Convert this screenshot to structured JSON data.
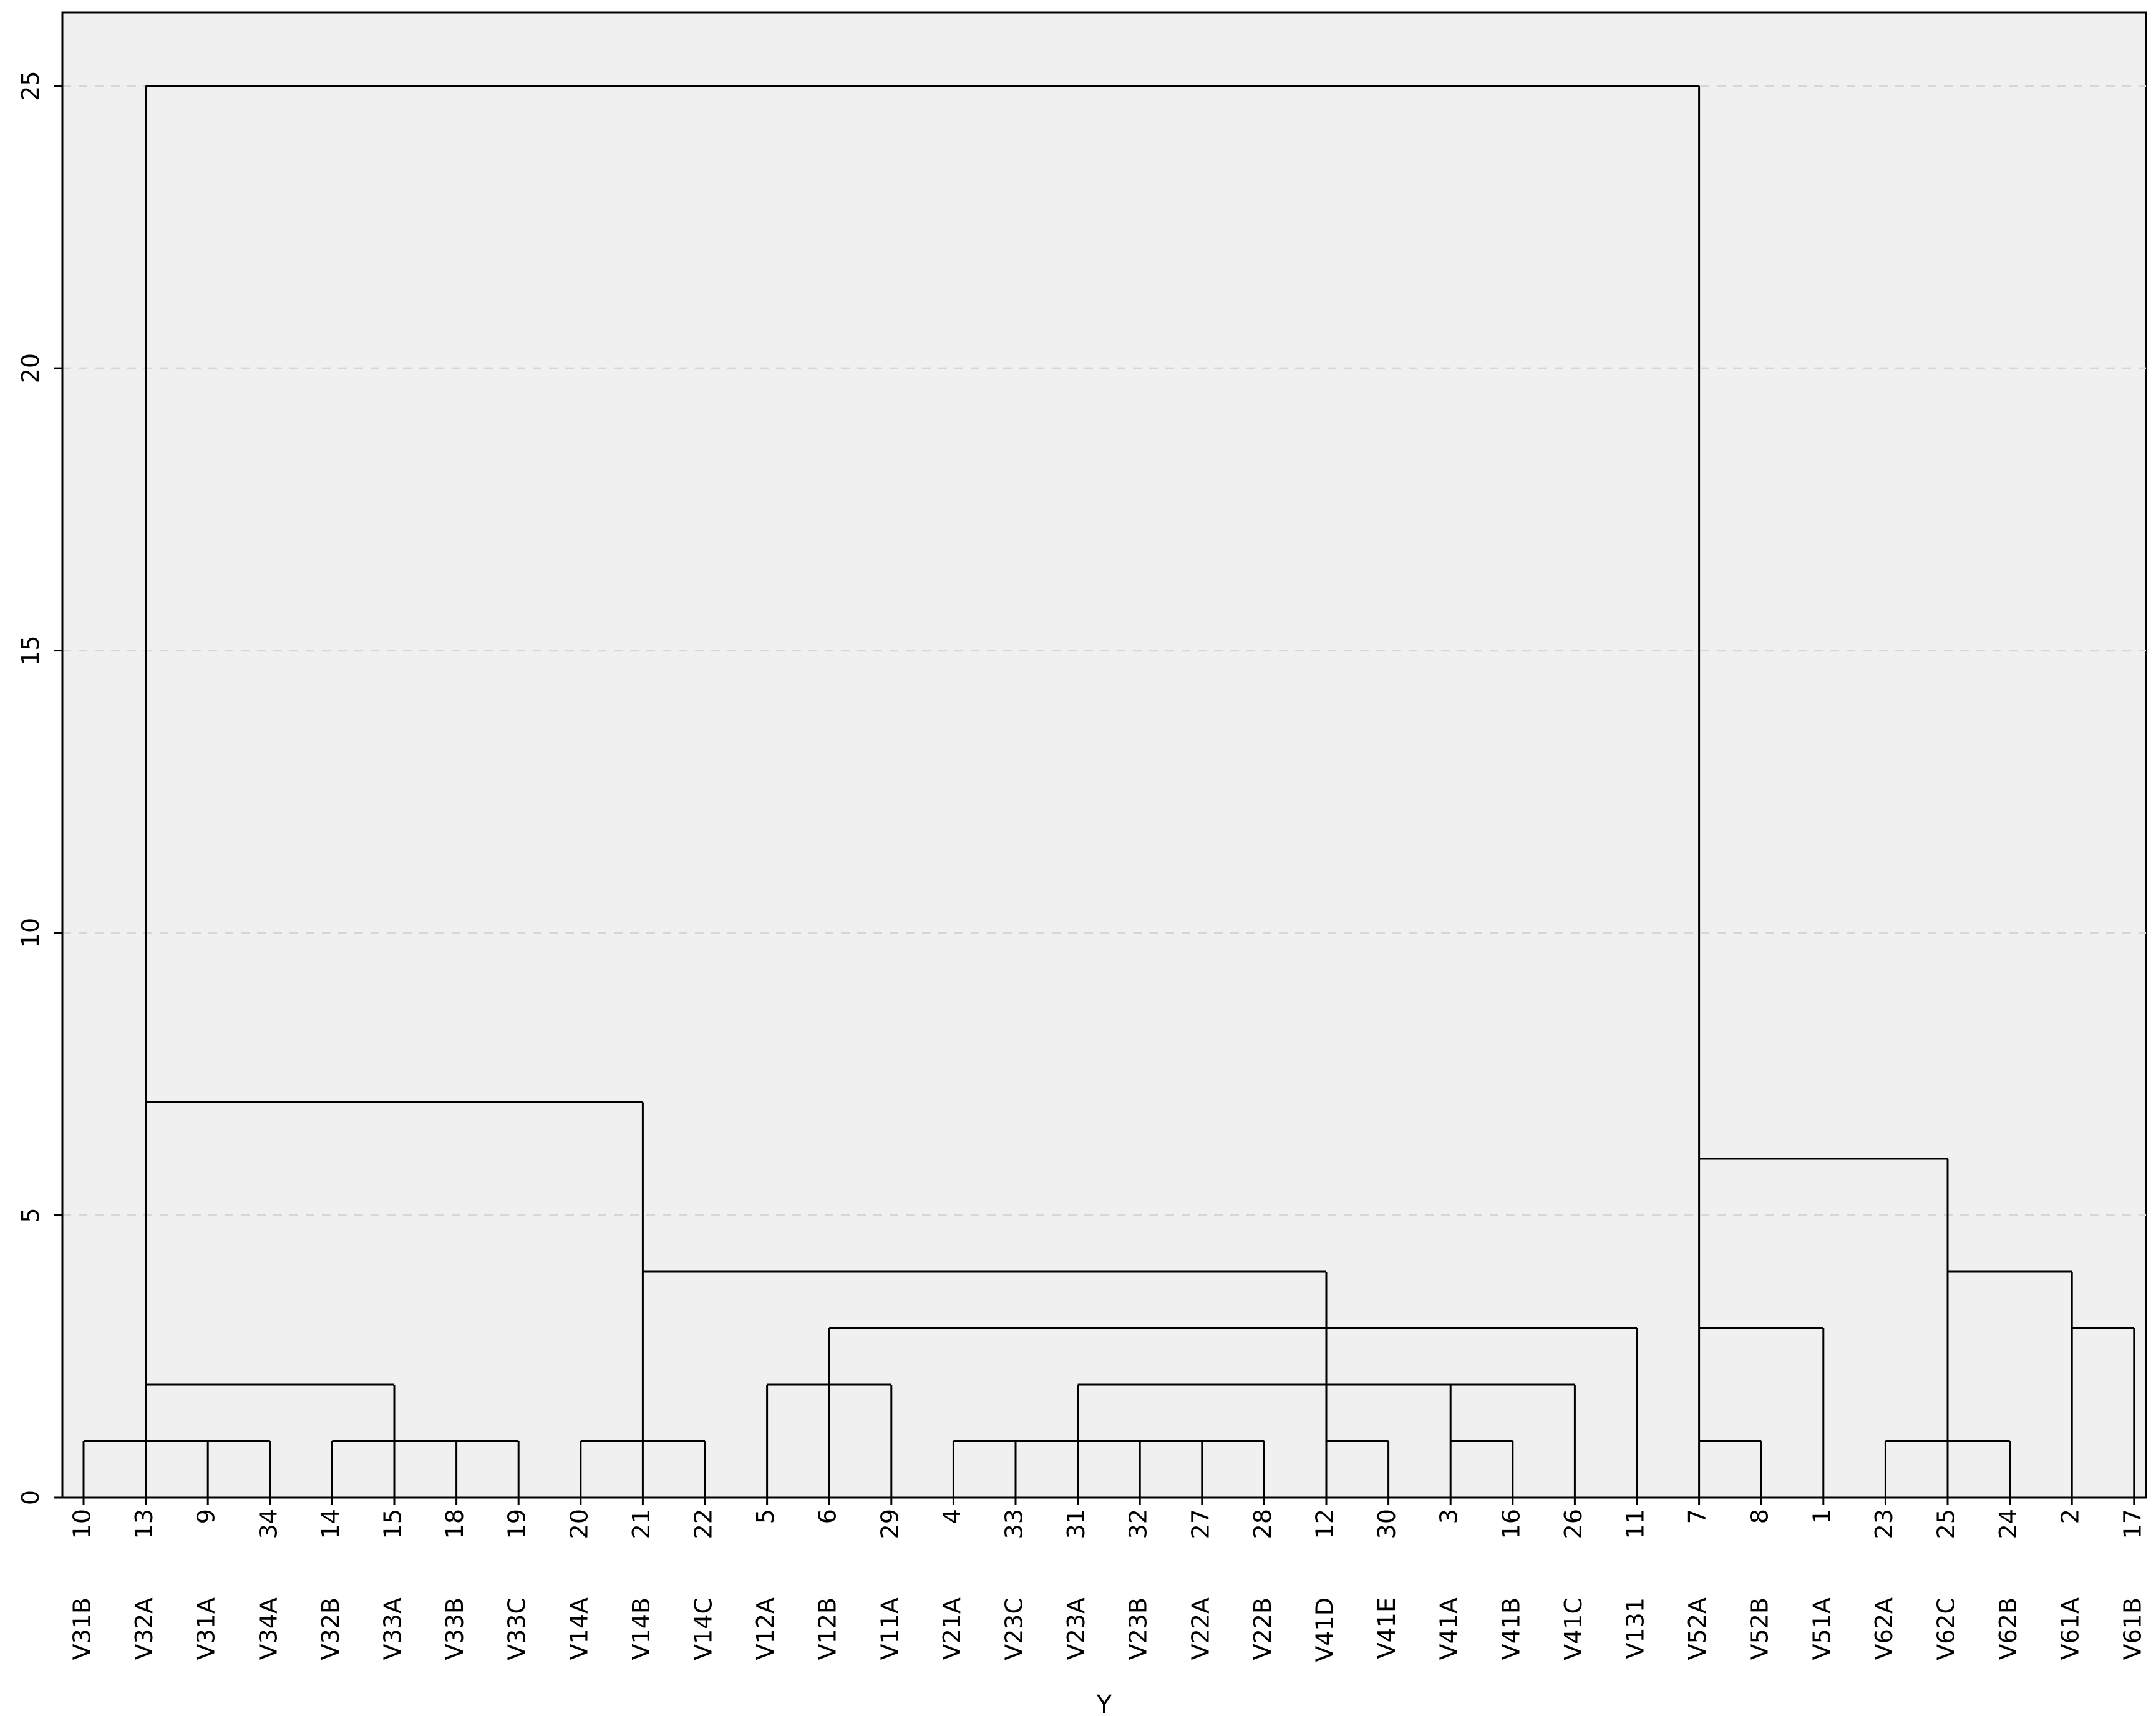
{
  "chart_data": {
    "type": "dendrogram",
    "title": "",
    "xlabel": "Y",
    "ylabel": "",
    "ylim": [
      0,
      26.3
    ],
    "y_ticks": [
      "0",
      "5",
      "10",
      "15",
      "20",
      "25"
    ],
    "y_tick_values": [
      0,
      5,
      10,
      15,
      20,
      25
    ],
    "grid": true,
    "leaves": [
      {
        "id": "10",
        "name": "V31B"
      },
      {
        "id": "13",
        "name": "V32A"
      },
      {
        "id": "9",
        "name": "V31A"
      },
      {
        "id": "34",
        "name": "V34A"
      },
      {
        "id": "14",
        "name": "V32B"
      },
      {
        "id": "15",
        "name": "V33A"
      },
      {
        "id": "18",
        "name": "V33B"
      },
      {
        "id": "19",
        "name": "V33C"
      },
      {
        "id": "20",
        "name": "V14A"
      },
      {
        "id": "21",
        "name": "V14B"
      },
      {
        "id": "22",
        "name": "V14C"
      },
      {
        "id": "5",
        "name": "V12A"
      },
      {
        "id": "6",
        "name": "V12B"
      },
      {
        "id": "29",
        "name": "V11A"
      },
      {
        "id": "4",
        "name": "V21A"
      },
      {
        "id": "33",
        "name": "V23C"
      },
      {
        "id": "31",
        "name": "V23A"
      },
      {
        "id": "32",
        "name": "V23B"
      },
      {
        "id": "27",
        "name": "V22A"
      },
      {
        "id": "28",
        "name": "V22B"
      },
      {
        "id": "12",
        "name": "V41D"
      },
      {
        "id": "30",
        "name": "V41E"
      },
      {
        "id": "3",
        "name": "V41A"
      },
      {
        "id": "16",
        "name": "V41B"
      },
      {
        "id": "26",
        "name": "V41C"
      },
      {
        "id": "11",
        "name": "V131"
      },
      {
        "id": "7",
        "name": "V52A"
      },
      {
        "id": "8",
        "name": "V52B"
      },
      {
        "id": "1",
        "name": "V51A"
      },
      {
        "id": "23",
        "name": "V62A"
      },
      {
        "id": "25",
        "name": "V62C"
      },
      {
        "id": "24",
        "name": "V62B"
      },
      {
        "id": "2",
        "name": "V61A"
      },
      {
        "id": "17",
        "name": "V61B"
      }
    ],
    "merges": [
      {
        "height": 1,
        "children": [
          [
            0,
            1,
            2,
            3
          ]
        ]
      },
      {
        "height": 1,
        "children": [
          [
            4,
            5,
            6,
            7
          ]
        ]
      },
      {
        "height": 2,
        "children": [
          [
            0,
            1,
            2,
            3
          ],
          [
            4,
            5,
            6,
            7
          ]
        ]
      },
      {
        "height": 1,
        "children": [
          [
            8,
            9,
            10
          ]
        ]
      },
      {
        "height": 2,
        "children": [
          [
            11,
            12,
            13
          ]
        ]
      },
      {
        "height": 1,
        "children": [
          [
            14,
            15,
            16,
            17,
            18,
            19
          ]
        ]
      },
      {
        "height": 1,
        "children": [
          [
            20,
            21
          ]
        ]
      },
      {
        "height": 1,
        "children": [
          [
            22,
            23
          ]
        ]
      },
      {
        "height": 2,
        "children": [
          [
            14,
            15,
            16,
            17,
            18,
            19
          ],
          [
            20,
            21
          ],
          [
            22,
            23
          ],
          [
            24
          ]
        ]
      },
      {
        "height": 3,
        "children": [
          [
            11,
            12,
            13
          ],
          [
            14,
            15,
            16,
            17,
            18,
            19,
            20,
            21,
            22,
            23,
            24
          ],
          [
            25
          ]
        ]
      },
      {
        "height": 4,
        "children": [
          [
            8,
            9,
            10
          ],
          [
            11,
            12,
            13,
            14,
            15,
            16,
            17,
            18,
            19,
            20,
            21,
            22,
            23,
            24,
            25
          ]
        ]
      },
      {
        "height": 7,
        "children": [
          [
            0,
            1,
            2,
            3,
            4,
            5,
            6,
            7
          ],
          [
            8,
            9,
            10,
            11,
            12,
            13,
            14,
            15,
            16,
            17,
            18,
            19,
            20,
            21,
            22,
            23,
            24,
            25
          ]
        ]
      },
      {
        "height": 1,
        "children": [
          [
            26,
            27
          ]
        ]
      },
      {
        "height": 3,
        "children": [
          [
            26,
            27
          ],
          [
            28
          ]
        ]
      },
      {
        "height": 1,
        "children": [
          [
            29,
            30,
            31
          ]
        ]
      },
      {
        "height": 3,
        "children": [
          [
            32,
            33
          ]
        ]
      },
      {
        "height": 4,
        "children": [
          [
            29,
            30,
            31
          ],
          [
            32,
            33
          ]
        ]
      },
      {
        "height": 6,
        "children": [
          [
            26,
            27,
            28
          ],
          [
            29,
            30,
            31,
            32,
            33
          ]
        ]
      },
      {
        "height": 25,
        "children": [
          [
            0,
            1,
            2,
            3,
            4,
            5,
            6,
            7,
            8,
            9,
            10,
            11,
            12,
            13,
            14,
            15,
            16,
            17,
            18,
            19,
            20,
            21,
            22,
            23,
            24,
            25
          ],
          [
            26,
            27,
            28,
            29,
            30,
            31,
            32,
            33
          ]
        ]
      }
    ]
  }
}
